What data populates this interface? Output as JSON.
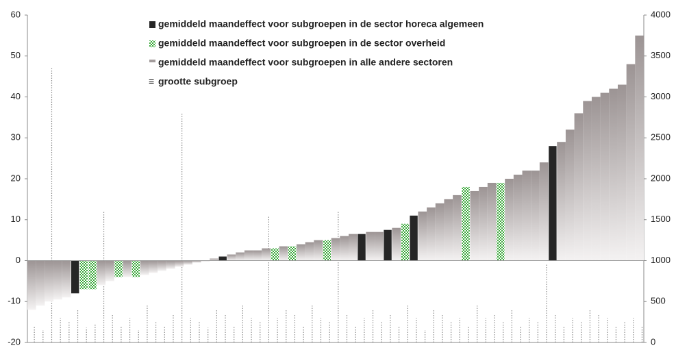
{
  "chart_data": {
    "type": "bar",
    "legend": "top",
    "categories": [
      null,
      null,
      null,
      null,
      null,
      null,
      null,
      null,
      null,
      null,
      null,
      null,
      null,
      null,
      null,
      null,
      null,
      null,
      null,
      null,
      null,
      null,
      null,
      null,
      null,
      null,
      null,
      null,
      null,
      null,
      null,
      null,
      null,
      null,
      null,
      null,
      null,
      null,
      null,
      null,
      null,
      null,
      null,
      null,
      null,
      null,
      null,
      null,
      null,
      null,
      null,
      null,
      null,
      null,
      null,
      null,
      null,
      null,
      null,
      null,
      null,
      null,
      null,
      null,
      null,
      null,
      null,
      null,
      null,
      null,
      null
    ],
    "series": [
      {
        "name": "gemiddeld maandeffect voor subgroepen in de sector horeca algemeen",
        "color": "#262626",
        "values": [
          null,
          null,
          null,
          null,
          null,
          -8,
          null,
          null,
          null,
          null,
          null,
          null,
          null,
          null,
          null,
          null,
          null,
          null,
          null,
          null,
          null,
          null,
          1,
          null,
          null,
          null,
          null,
          null,
          null,
          null,
          null,
          null,
          null,
          null,
          null,
          null,
          null,
          null,
          6.5,
          null,
          null,
          7.5,
          null,
          null,
          11,
          null,
          null,
          null,
          null,
          null,
          null,
          null,
          null,
          null,
          null,
          null,
          null,
          null,
          null,
          null,
          28,
          null,
          null,
          null,
          null,
          null,
          null,
          null,
          null,
          null,
          null
        ]
      },
      {
        "name": "gemiddeld maandeffect voor subgroepen in de sector overheid",
        "color": "#3aa83a",
        "values": [
          null,
          null,
          null,
          null,
          null,
          null,
          -7,
          -7,
          null,
          null,
          -4,
          null,
          -4,
          null,
          null,
          null,
          null,
          null,
          null,
          null,
          null,
          null,
          null,
          null,
          null,
          null,
          null,
          null,
          3,
          null,
          3.5,
          null,
          null,
          null,
          5,
          null,
          null,
          null,
          null,
          null,
          null,
          null,
          null,
          9,
          null,
          null,
          null,
          null,
          null,
          null,
          18,
          null,
          null,
          null,
          19,
          null,
          null,
          null,
          null,
          null,
          null,
          null,
          null,
          null,
          null,
          null,
          null,
          null,
          null,
          null,
          null
        ]
      },
      {
        "name": "gemiddeld maandeffect voor subgroepen in alle andere sectoren",
        "color": "#a39c9c",
        "values": [
          -12,
          -11,
          -10,
          -9.5,
          -9,
          null,
          null,
          null,
          -6,
          -5,
          null,
          -4,
          null,
          -3.5,
          -3,
          -2.5,
          -2,
          -1.5,
          -1,
          -0.5,
          0,
          0.5,
          null,
          1.5,
          2,
          2.5,
          2.5,
          3,
          null,
          3.5,
          null,
          4,
          4.5,
          5,
          null,
          5.5,
          6,
          6.5,
          null,
          7,
          7,
          null,
          8,
          null,
          null,
          12,
          13,
          14,
          15,
          16,
          null,
          17,
          18,
          19,
          null,
          20,
          21,
          22,
          22,
          24,
          null,
          29,
          32,
          36,
          39,
          40,
          41,
          42,
          43,
          48,
          55
        ]
      },
      {
        "name": "grootte subgroep",
        "color": "#8a8a8a",
        "axis": "y2",
        "values": [
          200,
          150,
          3350,
          300,
          250,
          400,
          180,
          220,
          1600,
          350,
          200,
          300,
          150,
          450,
          250,
          200,
          350,
          2800,
          300,
          250,
          180,
          400,
          350,
          200,
          450,
          300,
          250,
          1550,
          300,
          400,
          350,
          200,
          450,
          300,
          250,
          1600,
          350,
          200,
          300,
          400,
          250,
          350,
          200,
          450,
          300,
          150,
          400,
          350,
          250,
          300,
          200,
          450,
          300,
          350,
          250,
          400,
          200,
          300,
          250,
          950,
          350,
          200,
          300,
          250,
          400,
          350,
          300,
          200,
          250,
          300,
          200
        ]
      }
    ],
    "ylim": [
      -20,
      60
    ],
    "yticks": [
      -20,
      -10,
      0,
      10,
      20,
      30,
      40,
      50,
      60
    ],
    "y2lim": [
      0,
      4000
    ],
    "y2ticks": [
      0,
      500,
      1000,
      1500,
      2000,
      2500,
      3000,
      3500,
      4000
    ]
  }
}
